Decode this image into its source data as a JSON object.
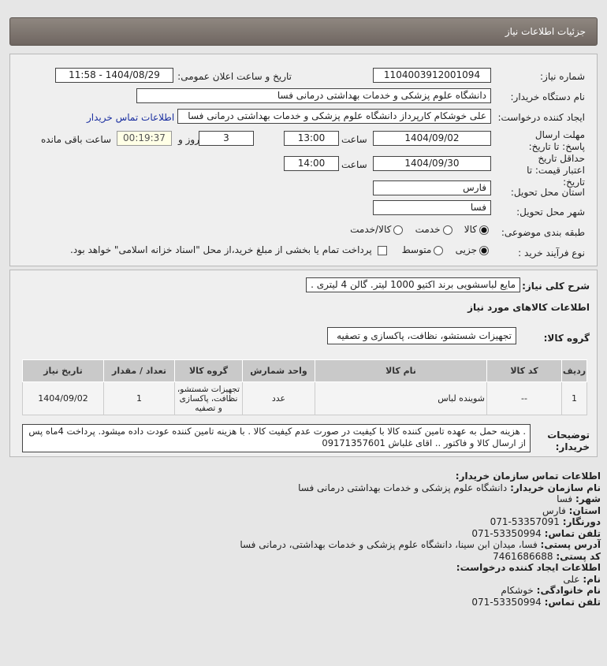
{
  "header": {
    "title": "جزئيات اطلاعات نياز"
  },
  "form": {
    "need_number_label": "شماره نیاز:",
    "need_number": "1104003912001094",
    "announce_label": "تاریخ و ساعت اعلان عمومی:",
    "announce_value": "1404/08/29 - 11:58",
    "buyer_label": "نام دستگاه خریدار:",
    "buyer": "دانشگاه علوم پزشکی و خدمات بهداشتی درمانی فسا",
    "creator_label": "ایجاد کننده درخواست:",
    "creator": "علی خوشکام کارپرداز دانشگاه علوم پزشکی و خدمات بهداشتی درمانی فسا",
    "contact_link": "اطلاعات تماس خریدار",
    "deadline_label": "مهلت ارسال پاسخ: تا تاریخ:",
    "deadline_date": "1404/09/02",
    "time_label": "ساعت",
    "deadline_time": "13:00",
    "days": "3",
    "days_label": "روز و",
    "remaining": "00:19:37",
    "remaining_label": "ساعت باقی مانده",
    "validity_label": "حداقل تاریخ اعتبار قیمت: تا تاریخ:",
    "validity_date": "1404/09/30",
    "validity_time": "14:00",
    "province_label": "استان محل تحویل:",
    "province": "فارس",
    "city_label": "شهر محل تحویل:",
    "city": "فسا",
    "category_label": "طبقه بندی موضوعی:",
    "category_options": [
      "کالا",
      "خدمت",
      "کالا/خدمت"
    ],
    "category_selected": "کالا",
    "process_label": "نوع فرآیند خرید :",
    "process_options": [
      "جزیی",
      "متوسط"
    ],
    "process_selected": "جزیی",
    "payment_note": "پرداخت تمام یا بخشی از مبلغ خرید،از محل \"اسناد خزانه اسلامی\" خواهد بود."
  },
  "details": {
    "summary_label": "شرح کلی نیاز:",
    "summary": "مایع لباسشویی برند اکتیو 1000 لیتر. گالن 4 لیتری .",
    "goods_title": "اطلاعات کالاهای مورد نیاز",
    "group_label": "گروه کالا:",
    "group": "تجهیزات شستشو، نظافت، پاکسازی و تصفیه",
    "table": {
      "headers": [
        "ردیف",
        "کد کالا",
        "نام کالا",
        "واحد شمارش",
        "گروه کالا",
        "تعداد / مقدار",
        "تاریخ نیاز"
      ],
      "rows": [
        [
          "1",
          "--",
          "شوینده لباس",
          "عدد",
          "تجهیزات شستشو، نظافت، پاکسازی و تصفیه",
          "1",
          "1404/09/02"
        ]
      ]
    },
    "notes_label": "توضیحات خریدار:",
    "notes": ". هزینه حمل به عهده تامین کننده کالا با کیفیت در صورت عدم کیفیت کالا . با هزینه تامین کننده عودت داده میشود. پرداخت 4ماه پس از ارسال کالا و فاکتور .. اقای غلباش 09171357601"
  },
  "contact": {
    "title": "اطلاعات تماس سازمان خریدار:",
    "items": [
      {
        "k": "نام سازمان خریدار:",
        "v": "دانشگاه علوم پزشکی و خدمات بهداشتی درمانی فسا"
      },
      {
        "k": "شهر:",
        "v": "فسا"
      },
      {
        "k": "استان:",
        "v": "فارس"
      },
      {
        "k": "دورنگار:",
        "v": "53357091-071"
      },
      {
        "k": "تلفن تماس:",
        "v": "53350994-071"
      },
      {
        "k": "آدرس پستی:",
        "v": "فسا، میدان ابن سینا، دانشگاه علوم پزشکی و خدمات بهداشتی، درمانی فسا"
      },
      {
        "k": "کد پستی:",
        "v": "7461686688"
      }
    ],
    "creator_title": "اطلاعات ایجاد کننده درخواست:",
    "creator_items": [
      {
        "k": "نام:",
        "v": "علی"
      },
      {
        "k": "نام خانوادگی:",
        "v": "خوشکام"
      },
      {
        "k": "تلفن تماس:",
        "v": "53350994-071"
      }
    ]
  }
}
